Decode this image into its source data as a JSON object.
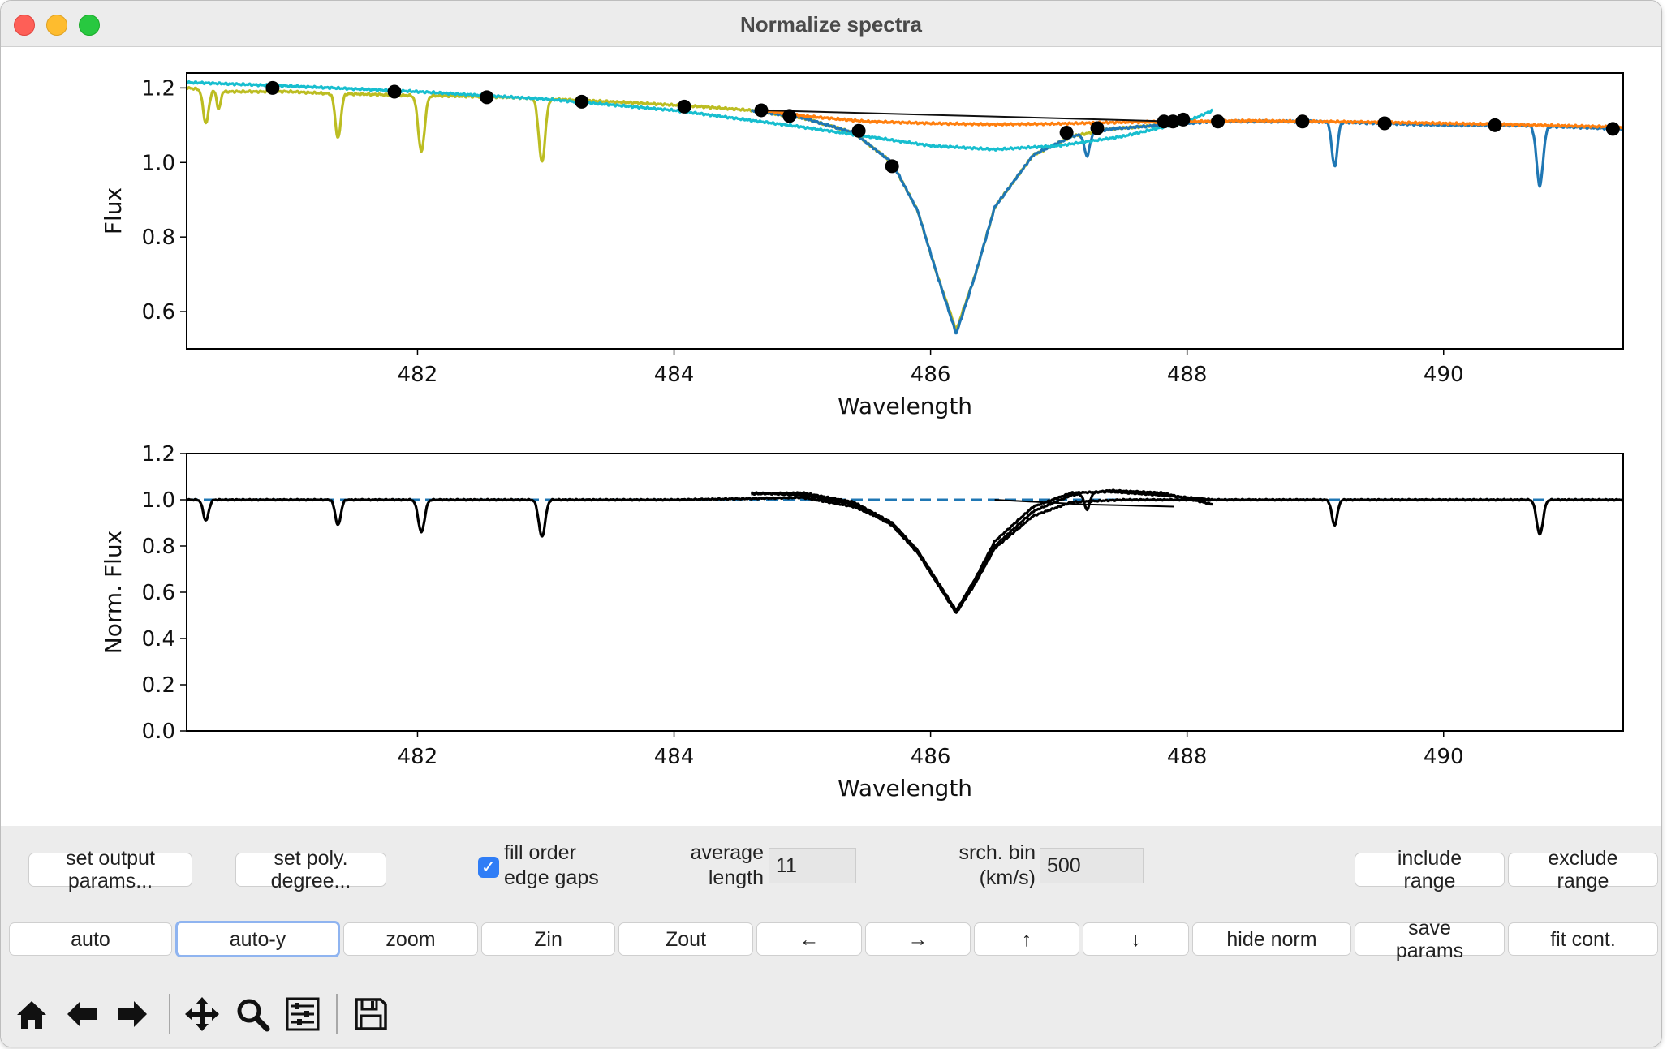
{
  "window": {
    "title": "Normalize spectra"
  },
  "chart_data": [
    {
      "type": "line",
      "title": "",
      "xlabel": "Wavelength",
      "ylabel": "Flux",
      "xlim": [
        480.2,
        491.4
      ],
      "ylim": [
        0.5,
        1.24
      ],
      "xticks": [
        "482",
        "484",
        "486",
        "488",
        "490"
      ],
      "yticks": [
        "0.6",
        "0.8",
        "1.0",
        "1.2"
      ],
      "series": [
        {
          "color": "#bcbd22",
          "x": [
            480.2,
            480.5,
            480.7,
            481.0,
            481.3,
            481.6,
            481.9,
            482.3,
            482.7,
            483.2,
            483.7,
            484.2,
            484.6,
            485.0,
            485.4,
            485.7,
            485.9,
            486.05,
            486.2,
            486.35,
            486.5,
            486.8,
            487.1,
            487.4,
            487.8,
            488.1
          ],
          "y": [
            1.2,
            1.19,
            1.19,
            1.19,
            1.185,
            1.183,
            1.18,
            1.178,
            1.175,
            1.168,
            1.16,
            1.15,
            1.14,
            1.12,
            1.08,
            1.0,
            0.87,
            0.7,
            0.55,
            0.7,
            0.88,
            1.02,
            1.07,
            1.09,
            1.1,
            1.11
          ]
        },
        {
          "color": "#1f77b4",
          "x": [
            484.6,
            485.0,
            485.4,
            485.7,
            485.9,
            486.05,
            486.2,
            486.35,
            486.5,
            486.8,
            487.1,
            487.4,
            487.8,
            488.2,
            488.6,
            489.0,
            489.5,
            490.0,
            490.5,
            491.0,
            491.4
          ],
          "y": [
            1.14,
            1.12,
            1.08,
            1.0,
            0.87,
            0.7,
            0.54,
            0.7,
            0.88,
            1.02,
            1.07,
            1.09,
            1.1,
            1.11,
            1.11,
            1.11,
            1.105,
            1.1,
            1.1,
            1.095,
            1.09
          ]
        },
        {
          "color": "#17becf",
          "x": [
            480.2,
            481.0,
            482.0,
            483.0,
            484.0,
            485.0,
            485.5,
            486.0,
            486.5,
            487.0,
            487.5,
            488.0,
            488.2
          ],
          "y": [
            1.215,
            1.205,
            1.19,
            1.17,
            1.14,
            1.095,
            1.07,
            1.045,
            1.035,
            1.045,
            1.07,
            1.11,
            1.14
          ]
        },
        {
          "color": "#ff7f0e",
          "x": [
            484.7,
            485.0,
            485.5,
            486.0,
            486.5,
            487.0,
            487.5,
            488.0,
            488.5,
            489.0,
            489.5,
            490.0,
            490.5,
            491.0,
            491.4
          ],
          "y": [
            1.14,
            1.125,
            1.11,
            1.105,
            1.102,
            1.104,
            1.108,
            1.11,
            1.112,
            1.11,
            1.108,
            1.105,
            1.102,
            1.098,
            1.095
          ]
        },
        {
          "color": "#111111",
          "x": [
            484.7,
            487.9
          ],
          "y": [
            1.14,
            1.11
          ]
        }
      ],
      "points": {
        "color": "#000000",
        "x": [
          480.87,
          481.82,
          482.54,
          483.28,
          484.08,
          484.68,
          484.9,
          485.44,
          485.7,
          487.06,
          487.3,
          487.82,
          487.89,
          487.97,
          488.24,
          488.9,
          489.54,
          490.4,
          491.32
        ],
        "y": [
          1.2,
          1.19,
          1.175,
          1.163,
          1.15,
          1.14,
          1.125,
          1.085,
          0.99,
          1.08,
          1.092,
          1.11,
          1.11,
          1.115,
          1.11,
          1.11,
          1.105,
          1.1,
          1.09
        ]
      },
      "absorption_lines": [
        {
          "x": 480.35,
          "depth": 0.09,
          "w": 0.03,
          "series": 0
        },
        {
          "x": 480.45,
          "depth": 0.05,
          "w": 0.02,
          "series": 0
        },
        {
          "x": 481.38,
          "depth": 0.12,
          "w": 0.03,
          "series": 0
        },
        {
          "x": 482.03,
          "depth": 0.15,
          "w": 0.035,
          "series": 0
        },
        {
          "x": 482.97,
          "depth": 0.17,
          "w": 0.035,
          "series": 0
        },
        {
          "x": 487.22,
          "depth": 0.06,
          "w": 0.03,
          "series": 1
        },
        {
          "x": 489.15,
          "depth": 0.12,
          "w": 0.03,
          "series": 1
        },
        {
          "x": 490.75,
          "depth": 0.16,
          "w": 0.035,
          "series": 1
        }
      ]
    },
    {
      "type": "line",
      "title": "",
      "xlabel": "Wavelength",
      "ylabel": "Norm. Flux",
      "xlim": [
        480.2,
        491.4
      ],
      "ylim": [
        0.0,
        1.2
      ],
      "xticks": [
        "482",
        "484",
        "486",
        "488",
        "490"
      ],
      "yticks": [
        "0.0",
        "0.2",
        "0.4",
        "0.6",
        "0.8",
        "1.0",
        "1.2"
      ],
      "reference_line": {
        "y": 1.0,
        "color": "#1f77b4",
        "style": "dashed"
      },
      "series": [
        {
          "color": "#000000",
          "x": [
            480.2,
            482.0,
            484.0,
            484.6,
            485.0,
            485.4,
            485.7,
            485.9,
            486.05,
            486.2,
            486.35,
            486.5,
            486.8,
            487.1,
            487.5,
            488.0,
            488.2,
            489.0,
            490.0,
            491.4
          ],
          "y": [
            1.0,
            1.0,
            1.0,
            1.005,
            1.01,
            0.97,
            0.9,
            0.78,
            0.64,
            0.51,
            0.64,
            0.79,
            0.93,
            0.99,
            1.0,
            1.0,
            1.0,
            1.0,
            1.0,
            1.0
          ]
        },
        {
          "color": "#000000",
          "x": [
            484.6,
            485.0,
            485.4,
            485.7,
            485.9,
            486.05,
            486.2,
            486.35,
            486.5,
            486.8,
            487.1,
            487.4,
            487.8,
            488.2
          ],
          "y": [
            1.03,
            1.02,
            0.98,
            0.89,
            0.77,
            0.64,
            0.52,
            0.65,
            0.8,
            0.95,
            1.02,
            1.04,
            1.03,
            0.98
          ]
        },
        {
          "color": "#000000",
          "x": [
            484.6,
            485.0,
            485.4,
            485.7,
            485.9,
            486.05,
            486.2,
            486.35,
            486.5,
            486.8,
            487.1,
            487.4,
            487.8,
            488.2
          ],
          "y": [
            1.025,
            1.03,
            0.99,
            0.9,
            0.78,
            0.65,
            0.52,
            0.66,
            0.82,
            0.97,
            1.03,
            1.035,
            1.02,
            1.0
          ]
        },
        {
          "color": "#000000",
          "x": [
            486.5,
            487.2,
            487.9
          ],
          "y": [
            1.0,
            0.98,
            0.97
          ]
        }
      ],
      "absorption_lines": [
        {
          "x": 480.35,
          "depth": 0.09,
          "w": 0.03,
          "series": 0
        },
        {
          "x": 481.38,
          "depth": 0.11,
          "w": 0.03,
          "series": 0
        },
        {
          "x": 482.03,
          "depth": 0.14,
          "w": 0.035,
          "series": 0
        },
        {
          "x": 482.97,
          "depth": 0.16,
          "w": 0.035,
          "series": 0
        },
        {
          "x": 487.22,
          "depth": 0.07,
          "w": 0.03,
          "series": 1
        },
        {
          "x": 489.15,
          "depth": 0.11,
          "w": 0.03,
          "series": 0
        },
        {
          "x": 490.75,
          "depth": 0.15,
          "w": 0.035,
          "series": 0
        }
      ]
    }
  ],
  "controls": {
    "set_output_params": "set output\nparams...",
    "set_poly_degree": "set poly.\ndegree...",
    "fill_order_label": "fill order\nedge gaps",
    "fill_order_checked": "✓",
    "average_length_label": "average\nlength",
    "average_length_value": "11",
    "srch_bin_label": "srch. bin\n(km/s)",
    "srch_bin_value": "500",
    "include_range": "include\nrange",
    "exclude_range": "exclude\nrange"
  },
  "buttons": {
    "auto": "auto",
    "auto_y": "auto-y",
    "zoom": "zoom",
    "zin": "Zin",
    "zout": "Zout",
    "left": "←",
    "right": "→",
    "up": "↑",
    "down": "↓",
    "hide_norm": "hide norm",
    "save_params": "save\nparams",
    "fit_cont": "fit cont."
  },
  "toolbar": {
    "icons": [
      "home-icon",
      "back-icon",
      "forward-icon",
      "pan-icon",
      "zoom-icon",
      "configure-icon",
      "save-icon"
    ]
  }
}
